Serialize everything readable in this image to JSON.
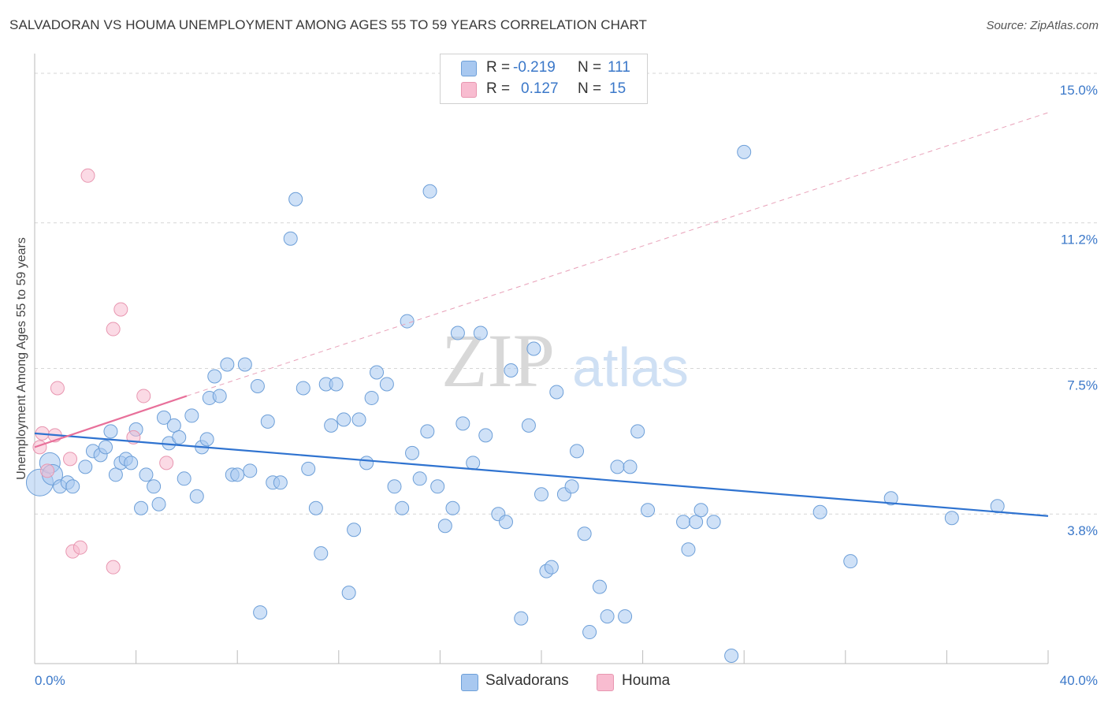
{
  "title": "SALVADORAN VS HOUMA UNEMPLOYMENT AMONG AGES 55 TO 59 YEARS CORRELATION CHART",
  "source": "Source: ZipAtlas.com",
  "watermark": {
    "zip": "ZIP",
    "atlas": "atlas"
  },
  "legend_top": {
    "rows": [
      {
        "r_label": "R =",
        "r_value": "-0.219",
        "n_label": "N =",
        "n_value": "111",
        "color": "#a8c8f0"
      },
      {
        "r_label": "R =",
        "r_value": "0.127",
        "n_label": "N =",
        "n_value": "15",
        "color": "#f8bcd0"
      }
    ]
  },
  "legend_bottom": [
    {
      "label": "Salvadorans",
      "color": "#a8c8f0"
    },
    {
      "label": "Houma",
      "color": "#f8bcd0"
    }
  ],
  "chart_data": {
    "type": "scatter",
    "ylabel": "Unemployment Among Ages 55 to 59 years",
    "x_tick_labels": [
      "0.0%",
      "40.0%"
    ],
    "y_tick_labels": [
      "3.8%",
      "7.5%",
      "11.2%",
      "15.0%"
    ],
    "xlim": [
      0,
      40
    ],
    "ylim": [
      0,
      15.3
    ],
    "y_ticks": [
      3.8,
      7.5,
      11.2,
      15.0
    ],
    "grid": true,
    "legend_placement": "top-center and bottom",
    "series": [
      {
        "name": "Salvadorans",
        "color": "#a8c8f0",
        "stroke": "#6d9fd8",
        "trend": {
          "x": [
            0,
            40
          ],
          "y": [
            5.85,
            3.75
          ],
          "color": "#2f73d0"
        },
        "points": [
          [
            0.2,
            4.6,
            3
          ],
          [
            0.6,
            5.1,
            2
          ],
          [
            0.7,
            4.8,
            2
          ],
          [
            1.0,
            4.5,
            1
          ],
          [
            1.3,
            4.6,
            1
          ],
          [
            1.5,
            4.5,
            1
          ],
          [
            2.0,
            5.0,
            1
          ],
          [
            2.3,
            5.4,
            1
          ],
          [
            2.6,
            5.3,
            1
          ],
          [
            2.8,
            5.5,
            1
          ],
          [
            3.0,
            5.9,
            1
          ],
          [
            3.2,
            4.8,
            1
          ],
          [
            3.4,
            5.1,
            1
          ],
          [
            3.6,
            5.2,
            1
          ],
          [
            3.8,
            5.1,
            1
          ],
          [
            4.0,
            5.95,
            1
          ],
          [
            4.2,
            3.95,
            1
          ],
          [
            4.4,
            4.8,
            1
          ],
          [
            4.7,
            4.5,
            1
          ],
          [
            4.9,
            4.05,
            1
          ],
          [
            5.1,
            6.25,
            1
          ],
          [
            5.3,
            5.6,
            1
          ],
          [
            5.5,
            6.05,
            1
          ],
          [
            5.7,
            5.75,
            1
          ],
          [
            5.9,
            4.7,
            1
          ],
          [
            6.2,
            6.3,
            1
          ],
          [
            6.4,
            4.25,
            1
          ],
          [
            6.6,
            5.5,
            1
          ],
          [
            6.8,
            5.7,
            1
          ],
          [
            6.9,
            6.75,
            1
          ],
          [
            7.1,
            7.3,
            1
          ],
          [
            7.3,
            6.8,
            1
          ],
          [
            7.6,
            7.6,
            1
          ],
          [
            7.8,
            4.8,
            1
          ],
          [
            8.0,
            4.8,
            1
          ],
          [
            8.3,
            7.6,
            1
          ],
          [
            8.5,
            4.9,
            1
          ],
          [
            8.8,
            7.05,
            1
          ],
          [
            8.9,
            1.3,
            1
          ],
          [
            9.2,
            6.15,
            1
          ],
          [
            9.4,
            4.6,
            1
          ],
          [
            9.7,
            4.6,
            1
          ],
          [
            10.1,
            10.8,
            1
          ],
          [
            10.3,
            11.8,
            1
          ],
          [
            10.6,
            7.0,
            1
          ],
          [
            10.8,
            4.95,
            1
          ],
          [
            11.1,
            3.95,
            1
          ],
          [
            11.3,
            2.8,
            1
          ],
          [
            11.5,
            7.1,
            1
          ],
          [
            11.7,
            6.05,
            1
          ],
          [
            11.9,
            7.1,
            1
          ],
          [
            12.2,
            6.2,
            1
          ],
          [
            12.4,
            1.8,
            1
          ],
          [
            12.6,
            3.4,
            1
          ],
          [
            12.8,
            6.2,
            1
          ],
          [
            13.1,
            5.1,
            1
          ],
          [
            13.3,
            6.75,
            1
          ],
          [
            13.5,
            7.4,
            1
          ],
          [
            13.9,
            7.1,
            1
          ],
          [
            14.2,
            4.5,
            1
          ],
          [
            14.5,
            3.95,
            1
          ],
          [
            14.7,
            8.7,
            1
          ],
          [
            14.9,
            5.35,
            1
          ],
          [
            15.2,
            4.7,
            1
          ],
          [
            15.5,
            5.9,
            1
          ],
          [
            15.6,
            12.0,
            1
          ],
          [
            15.9,
            4.5,
            1
          ],
          [
            16.2,
            3.5,
            1
          ],
          [
            16.5,
            3.95,
            1
          ],
          [
            16.7,
            8.4,
            1
          ],
          [
            16.9,
            6.1,
            1
          ],
          [
            17.3,
            5.1,
            1
          ],
          [
            17.6,
            8.4,
            1
          ],
          [
            17.8,
            5.8,
            1
          ],
          [
            18.3,
            3.8,
            1
          ],
          [
            18.6,
            3.6,
            1
          ],
          [
            18.8,
            7.45,
            1
          ],
          [
            19.2,
            1.15,
            1
          ],
          [
            19.5,
            6.05,
            1
          ],
          [
            19.7,
            8.0,
            1
          ],
          [
            20.0,
            4.3,
            1
          ],
          [
            20.2,
            2.35,
            1
          ],
          [
            20.4,
            2.45,
            1
          ],
          [
            20.6,
            6.9,
            1
          ],
          [
            20.9,
            4.3,
            1
          ],
          [
            21.2,
            4.5,
            1
          ],
          [
            21.4,
            5.4,
            1
          ],
          [
            21.7,
            3.3,
            1
          ],
          [
            21.9,
            0.8,
            1
          ],
          [
            22.3,
            1.95,
            1
          ],
          [
            22.6,
            1.2,
            1
          ],
          [
            23.0,
            5.0,
            1
          ],
          [
            23.3,
            1.2,
            1
          ],
          [
            23.5,
            5.0,
            1
          ],
          [
            23.8,
            5.9,
            1
          ],
          [
            24.2,
            3.9,
            1
          ],
          [
            25.6,
            3.6,
            1
          ],
          [
            25.8,
            2.9,
            1
          ],
          [
            26.1,
            3.6,
            1
          ],
          [
            26.3,
            3.9,
            1
          ],
          [
            26.8,
            3.6,
            1
          ],
          [
            27.5,
            0.2,
            1
          ],
          [
            28.0,
            13.0,
            1
          ],
          [
            31.0,
            3.85,
            1
          ],
          [
            32.2,
            2.6,
            1
          ],
          [
            33.8,
            4.2,
            1
          ],
          [
            36.2,
            3.7,
            1
          ],
          [
            38.0,
            4.0,
            1
          ]
        ]
      },
      {
        "name": "Houma",
        "color": "#f8bcd0",
        "stroke": "#e896b0",
        "trend": {
          "x": [
            0,
            6
          ],
          "y": [
            5.5,
            6.8
          ],
          "color": "#e8709a"
        },
        "trend_extension": {
          "x": [
            6,
            40
          ],
          "y": [
            6.8,
            14.0
          ],
          "color": "#e8a0b8"
        },
        "points": [
          [
            0.2,
            5.5
          ],
          [
            0.3,
            5.85
          ],
          [
            0.5,
            4.9
          ],
          [
            0.8,
            5.8
          ],
          [
            0.9,
            7.0
          ],
          [
            1.4,
            5.2
          ],
          [
            1.5,
            2.85
          ],
          [
            1.8,
            2.95
          ],
          [
            2.1,
            12.4
          ],
          [
            3.1,
            8.5
          ],
          [
            3.1,
            2.45
          ],
          [
            3.4,
            9.0
          ],
          [
            3.9,
            5.75
          ],
          [
            4.3,
            6.8
          ],
          [
            5.2,
            5.1
          ]
        ]
      }
    ]
  }
}
